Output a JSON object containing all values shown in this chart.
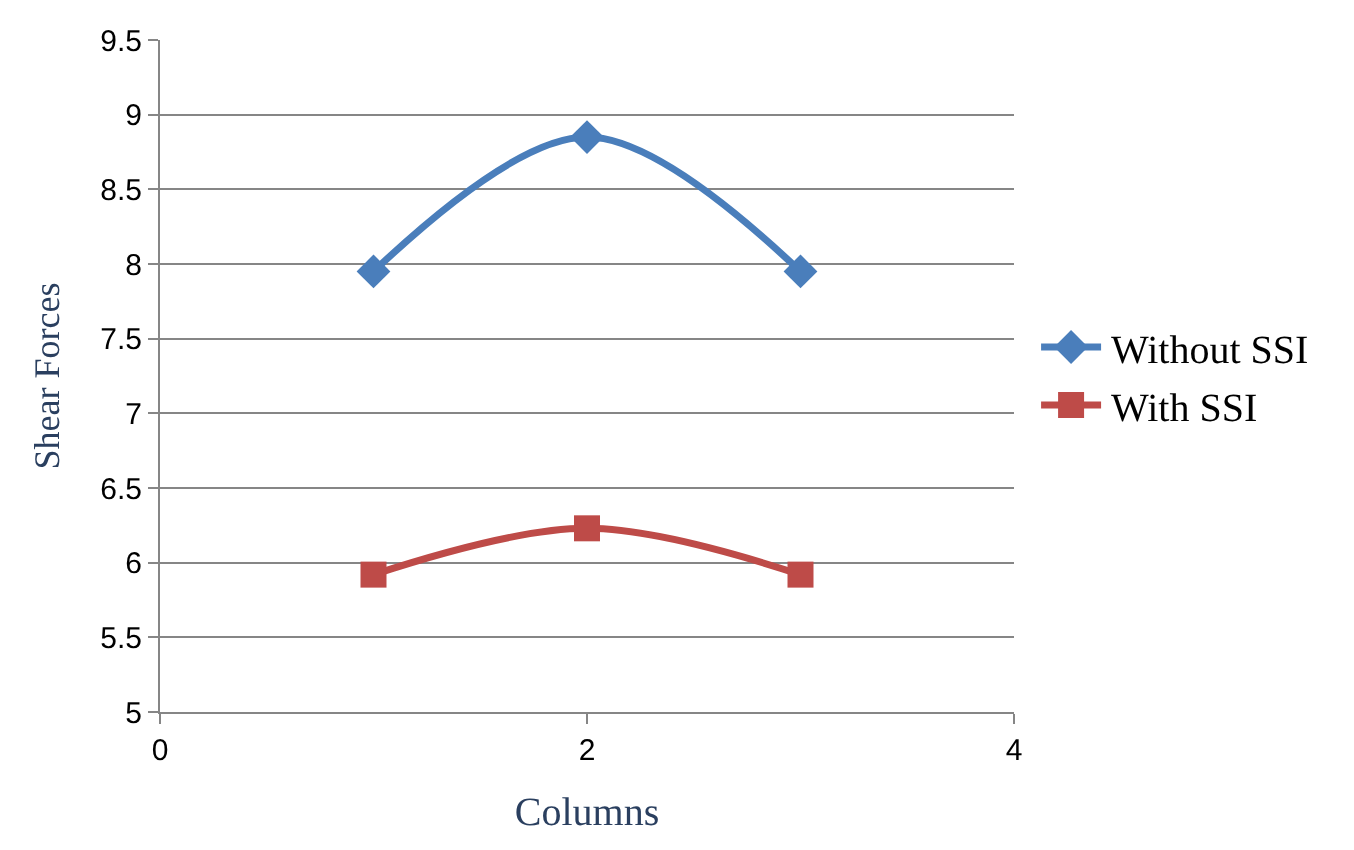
{
  "chart_data": {
    "type": "line",
    "xlabel": "Columns",
    "ylabel": "Shear Forces",
    "x": [
      1,
      2,
      3
    ],
    "series": [
      {
        "name": "Without SSI",
        "color": "#4a7ebb",
        "values": [
          7.95,
          8.85,
          7.95
        ],
        "marker": "diamond"
      },
      {
        "name": "With SSI",
        "color": "#be4b48",
        "values": [
          5.92,
          6.23,
          5.92
        ],
        "marker": "square"
      }
    ],
    "xlim": [
      0,
      4
    ],
    "xticks": [
      0,
      2,
      4
    ],
    "ylim": [
      5,
      9.5
    ],
    "yticks": [
      5,
      5.5,
      6,
      6.5,
      7,
      7.5,
      8,
      8.5,
      9,
      9.5
    ],
    "grid": "y",
    "legend": "right",
    "line_style": "solid"
  }
}
